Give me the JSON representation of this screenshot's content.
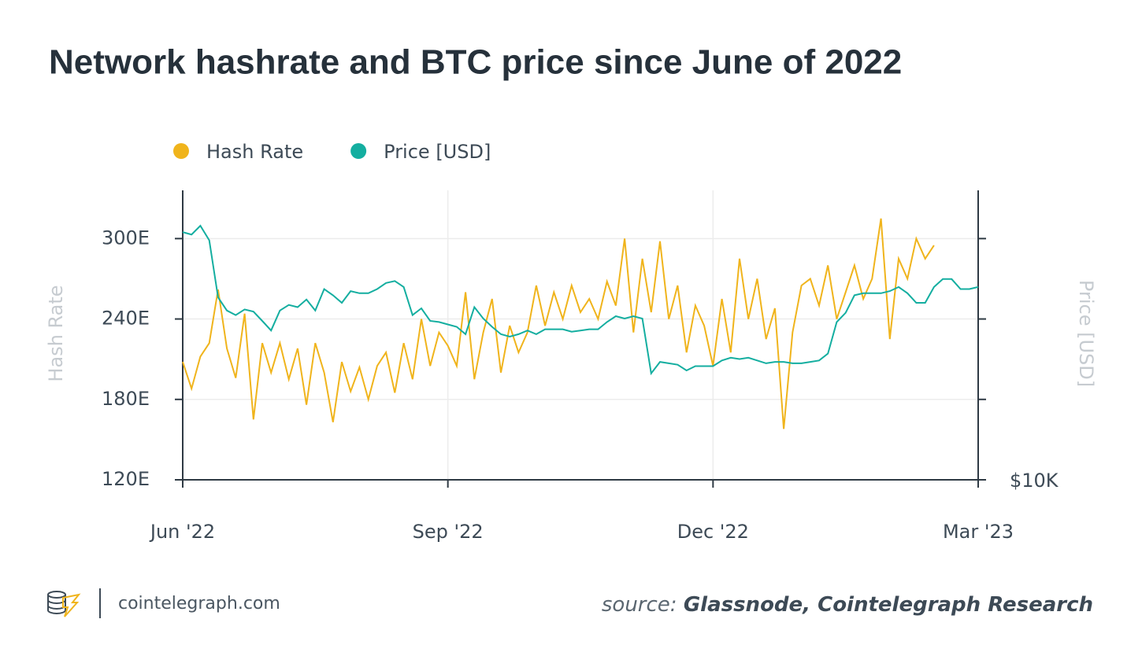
{
  "chart_data": {
    "type": "line",
    "title": "Network hashrate and BTC price since June of 2022",
    "categories": [
      "Jun '22",
      null,
      null,
      null,
      null,
      null,
      null,
      null,
      null,
      null,
      null,
      null,
      null,
      null,
      null,
      null,
      null,
      null,
      null,
      null,
      null,
      null,
      null,
      null,
      null,
      null,
      null,
      null,
      null,
      null,
      "Sep '22",
      null,
      null,
      null,
      null,
      null,
      null,
      null,
      null,
      null,
      null,
      null,
      null,
      null,
      null,
      null,
      null,
      null,
      null,
      null,
      null,
      null,
      null,
      null,
      null,
      null,
      null,
      null,
      null,
      null,
      "Dec '22",
      null,
      null,
      null,
      null,
      null,
      null,
      null,
      null,
      null,
      null,
      null,
      null,
      null,
      null,
      null,
      null,
      null,
      null,
      null,
      null,
      null,
      null,
      null,
      null,
      null,
      null,
      null,
      null,
      null,
      "Mar '23"
    ],
    "series": [
      {
        "name": "Hash Rate",
        "color": "#f0b41c",
        "axis": "y",
        "values": [
          208,
          188,
          212,
          222,
          262,
          218,
          196,
          244,
          165,
          222,
          200,
          222,
          195,
          218,
          176,
          222,
          200,
          163,
          208,
          186,
          204,
          180,
          205,
          215,
          185,
          222,
          195,
          240,
          205,
          230,
          220,
          205,
          260,
          195,
          230,
          255,
          200,
          235,
          215,
          230,
          265,
          235,
          260,
          240,
          265,
          245,
          255,
          240,
          268,
          250,
          300,
          230,
          285,
          245,
          298,
          240,
          265,
          215,
          250,
          235,
          205,
          255,
          215,
          285,
          240,
          270,
          225,
          248,
          158,
          230,
          265,
          270,
          250,
          280,
          240,
          260,
          280,
          255,
          270,
          315,
          225,
          285,
          270,
          300,
          285,
          295,
          null,
          null,
          null,
          null,
          null
        ]
      },
      {
        "name": "Price [USD]",
        "color": "#14aea0",
        "axis": "y2",
        "values": [
          29000,
          28700,
          29800,
          28000,
          21900,
          20700,
          20300,
          20800,
          20600,
          19800,
          19000,
          20700,
          21200,
          21000,
          21700,
          20700,
          22700,
          22100,
          21400,
          22500,
          22300,
          22300,
          22700,
          23300,
          23500,
          22900,
          20300,
          20900,
          19800,
          19700,
          19500,
          19300,
          18700,
          21000,
          20000,
          19300,
          18700,
          18500,
          18700,
          19000,
          18700,
          19100,
          19100,
          19100,
          18900,
          19000,
          19100,
          19100,
          19700,
          20200,
          20000,
          20200,
          20000,
          15800,
          16600,
          16500,
          16400,
          16000,
          16300,
          16300,
          16300,
          16700,
          16900,
          16800,
          16900,
          16700,
          16500,
          16600,
          16600,
          16500,
          16500,
          16600,
          16700,
          17200,
          19700,
          20500,
          22100,
          22300,
          22300,
          22300,
          22500,
          22900,
          22300,
          21400,
          21400,
          22900,
          23700,
          23700,
          22700,
          22700,
          22900
        ]
      }
    ],
    "y_label": "Hash Rate",
    "y2_label": "Price [USD]",
    "ylim": [
      120,
      336
    ],
    "yticks": [
      {
        "value": 120,
        "label": "120E"
      },
      {
        "value": 180,
        "label": "180E"
      },
      {
        "value": 240,
        "label": "240E"
      },
      {
        "value": 300,
        "label": "300E"
      }
    ],
    "y2lim": [
      10000,
      34700
    ],
    "y2ticks": [
      {
        "value": 10000,
        "label": "$10K"
      }
    ],
    "y2log": true,
    "grid": true,
    "legend": "top"
  },
  "footer": {
    "brand": "cointelegraph.com",
    "source_label": "source:",
    "source": "Glassnode, Cointelegraph Research"
  }
}
